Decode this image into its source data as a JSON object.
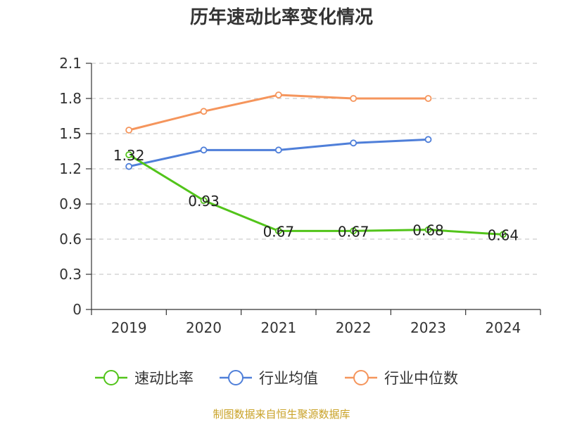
{
  "title": "历年速动比率变化情况",
  "source": "制图数据来自恒生聚源数据库",
  "colors": {
    "series_速动比率": "#52c41a",
    "series_行业均值": "#4f7fd9",
    "series_行业中位数": "#f5955c",
    "grid": "#cccccc",
    "axis": "#333333"
  },
  "chart_data": {
    "type": "line",
    "title": "历年速动比率变化情况",
    "categories": [
      "2019",
      "2020",
      "2021",
      "2022",
      "2023",
      "2024"
    ],
    "yticks": [
      "0",
      "0.3",
      "0.6",
      "0.9",
      "1.2",
      "1.5",
      "1.8",
      "2.1"
    ],
    "ylim": [
      0,
      2.1
    ],
    "grid": true,
    "legend_position": "bottom",
    "series": [
      {
        "name": "速动比率",
        "values": [
          1.32,
          0.93,
          0.67,
          0.67,
          0.68,
          0.64
        ],
        "labels": [
          "1.32",
          "0.93",
          "0.67",
          "0.67",
          "0.68",
          "0.64"
        ]
      },
      {
        "name": "行业均值",
        "values": [
          1.22,
          1.36,
          1.36,
          1.42,
          1.45,
          null
        ]
      },
      {
        "name": "行业中位数",
        "values": [
          1.53,
          1.69,
          1.83,
          1.8,
          1.8,
          null
        ]
      }
    ]
  }
}
